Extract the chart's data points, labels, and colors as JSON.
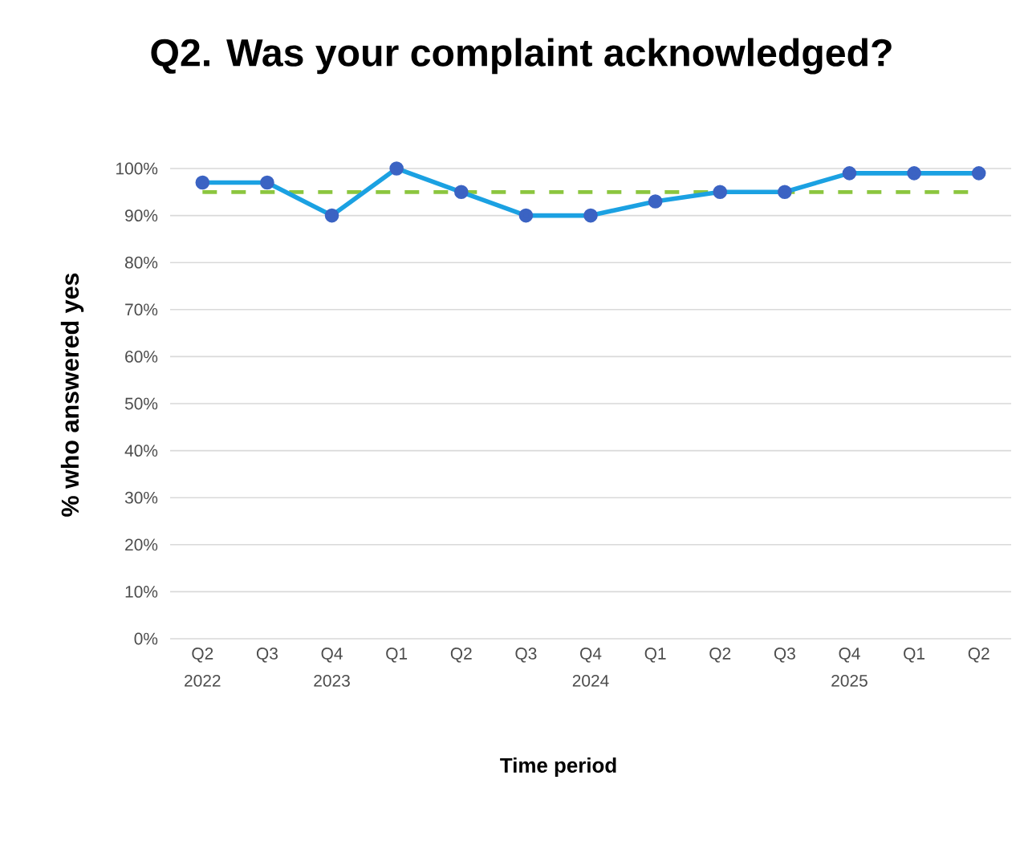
{
  "chart_data": {
    "type": "line",
    "title": "Q2. Was your complaint acknowledged?",
    "xlabel": "Time period",
    "ylabel": "% who answered yes",
    "categories": [
      "Q2 2022",
      "Q3",
      "Q4 2023",
      "Q1",
      "Q2",
      "Q3",
      "Q4 2024",
      "Q1",
      "Q2",
      "Q3",
      "Q4 2025",
      "Q1",
      "Q2"
    ],
    "series": [
      {
        "color": "#1ba1e2",
        "values": [
          97,
          97,
          90,
          100,
          95,
          90,
          90,
          93,
          95,
          95,
          99,
          99,
          99
        ]
      }
    ],
    "ylim": [
      0,
      100
    ],
    "yticks": [
      {
        "value": 0,
        "label": "0%"
      },
      {
        "value": 10,
        "label": "10%"
      },
      {
        "value": 20,
        "label": "20%"
      },
      {
        "value": 30,
        "label": "30%"
      },
      {
        "value": 40,
        "label": "40%"
      },
      {
        "value": 50,
        "label": "50%"
      },
      {
        "value": 60,
        "label": "60%"
      },
      {
        "value": 70,
        "label": "70%"
      },
      {
        "value": 80,
        "label": "80%"
      },
      {
        "value": 90,
        "label": "90%"
      },
      {
        "value": 100,
        "label": "100%"
      }
    ],
    "ref_lines": [
      {
        "axis": "y",
        "value": 95,
        "color": "#8cc63f",
        "line_style": "dashed"
      }
    ],
    "grid": "y",
    "marker": "circle",
    "line_style": "solid"
  }
}
